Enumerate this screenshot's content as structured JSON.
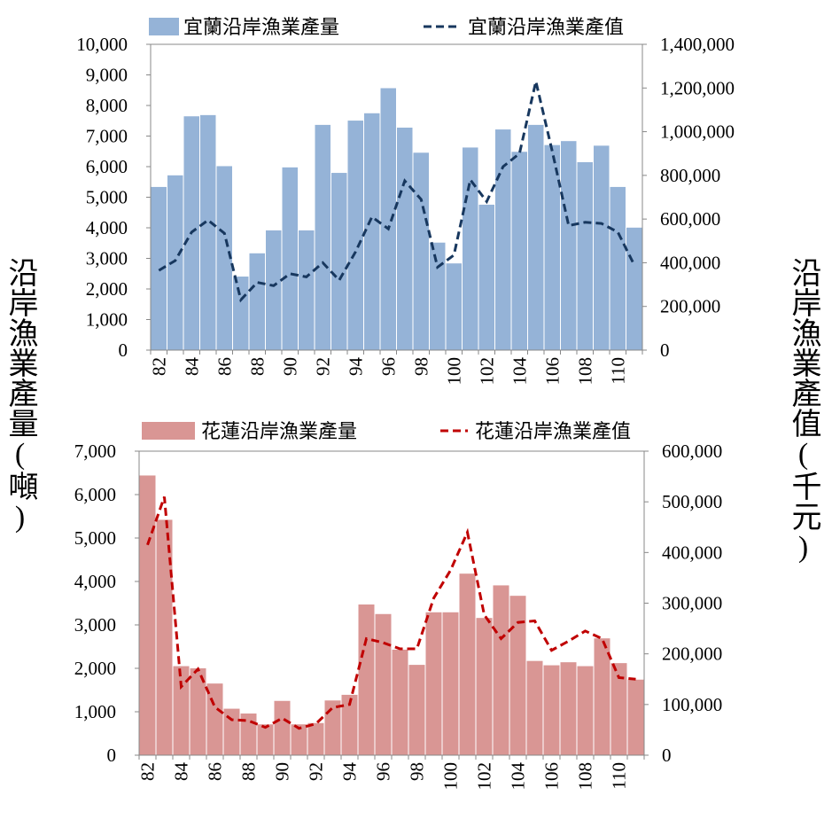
{
  "y_left_title": "沿岸漁業產量(噸)",
  "y_right_title": "沿岸漁業產值(千元)",
  "chart_data": [
    {
      "type": "bar+line",
      "id": "yilan",
      "categories": [
        "82",
        "83",
        "84",
        "85",
        "86",
        "87",
        "88",
        "89",
        "90",
        "91",
        "92",
        "93",
        "94",
        "95",
        "96",
        "97",
        "98",
        "99",
        "100",
        "101",
        "102",
        "103",
        "104",
        "105",
        "106",
        "107",
        "108",
        "109",
        "110",
        "111"
      ],
      "x_tick_labels": [
        "82",
        "84",
        "86",
        "88",
        "90",
        "92",
        "94",
        "96",
        "98",
        "100",
        "102",
        "104",
        "106",
        "108",
        "110"
      ],
      "bar_series": {
        "name": "宜蘭沿岸漁業產量",
        "color": "#95b3d7",
        "values": [
          5350,
          5730,
          7660,
          7700,
          6030,
          2420,
          3180,
          3930,
          5990,
          3930,
          7380,
          5810,
          7520,
          7760,
          8580,
          7290,
          6470,
          3530,
          2850,
          6640,
          4770,
          7230,
          6500,
          7380,
          6720,
          6850,
          6160,
          6700,
          5350,
          4020
        ]
      },
      "line_series": {
        "name": "宜蘭沿岸漁業產值",
        "color": "#17375e",
        "dash": "dashed",
        "values": [
          365000,
          410000,
          540000,
          595000,
          535000,
          230000,
          310000,
          295000,
          350000,
          335000,
          400000,
          320000,
          450000,
          610000,
          555000,
          775000,
          690000,
          380000,
          435000,
          780000,
          680000,
          840000,
          900000,
          1230000,
          910000,
          570000,
          585000,
          580000,
          540000,
          390000
        ]
      },
      "y_left": {
        "min": 0,
        "max": 10000,
        "step": 1000,
        "tick_labels": [
          "0",
          "1,000",
          "2,000",
          "3,000",
          "4,000",
          "5,000",
          "6,000",
          "7,000",
          "8,000",
          "9,000",
          "10,000"
        ]
      },
      "y_right": {
        "min": 0,
        "max": 1400000,
        "step": 200000,
        "tick_labels": [
          "0",
          "200,000",
          "400,000",
          "600,000",
          "800,000",
          "1,000,000",
          "1,200,000",
          "1,400,000"
        ]
      },
      "legend": "top"
    },
    {
      "type": "bar+line",
      "id": "hualien",
      "categories": [
        "82",
        "83",
        "84",
        "85",
        "86",
        "87",
        "88",
        "89",
        "90",
        "91",
        "92",
        "93",
        "94",
        "95",
        "96",
        "97",
        "98",
        "99",
        "100",
        "101",
        "102",
        "103",
        "104",
        "105",
        "106",
        "107",
        "108",
        "109",
        "110",
        "111"
      ],
      "x_tick_labels": [
        "82",
        "84",
        "86",
        "88",
        "90",
        "92",
        "94",
        "96",
        "98",
        "100",
        "102",
        "104",
        "106",
        "108",
        "110"
      ],
      "bar_series": {
        "name": "花蓮沿岸漁業產量",
        "color": "#d99694",
        "values": [
          6450,
          5430,
          2060,
          2010,
          1660,
          1080,
          970,
          720,
          1260,
          720,
          750,
          1270,
          1400,
          3480,
          3260,
          2440,
          2090,
          3300,
          3300,
          4190,
          3170,
          3920,
          3680,
          2180,
          2080,
          2150,
          2060,
          2700,
          2130,
          1750
        ]
      },
      "line_series": {
        "name": "花蓮沿岸漁業產值",
        "color": "#c00000",
        "dash": "dashed",
        "values": [
          415000,
          510000,
          135000,
          170000,
          95000,
          70000,
          68000,
          55000,
          73000,
          53000,
          62000,
          94000,
          100000,
          230000,
          222000,
          210000,
          210000,
          310000,
          365000,
          440000,
          277000,
          230000,
          262000,
          265000,
          207000,
          225000,
          245000,
          230000,
          153000,
          150000
        ]
      },
      "y_left": {
        "min": 0,
        "max": 7000,
        "step": 1000,
        "tick_labels": [
          "0",
          "1,000",
          "2,000",
          "3,000",
          "4,000",
          "5,000",
          "6,000",
          "7,000"
        ]
      },
      "y_right": {
        "min": 0,
        "max": 600000,
        "step": 100000,
        "tick_labels": [
          "0",
          "100,000",
          "200,000",
          "300,000",
          "400,000",
          "500,000",
          "600,000"
        ]
      },
      "legend": "top"
    }
  ]
}
